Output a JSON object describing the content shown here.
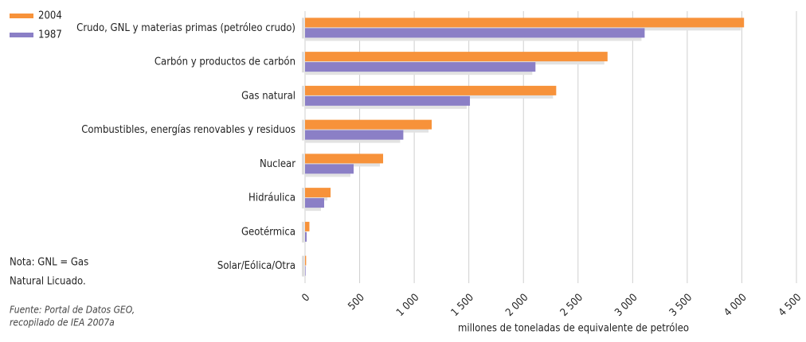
{
  "chart_data": {
    "type": "bar",
    "orientation": "horizontal",
    "categories": [
      "Crudo, GNL y materias primas (petróleo crudo)",
      "Carbón y productos de carbón",
      "Gas natural",
      "Combustibles, energías renovables y residuos",
      "Nuclear",
      "Hidráulica",
      "Geotérmica",
      "Solar/Eólica/Otra"
    ],
    "series": [
      {
        "name": "2004",
        "color": "#f7923a",
        "values": [
          4020,
          2770,
          2300,
          1160,
          715,
          234,
          40,
          10
        ]
      },
      {
        "name": "1987",
        "color": "#8b7fc6",
        "values": [
          3110,
          2110,
          1510,
          900,
          445,
          175,
          15,
          5
        ]
      }
    ],
    "xlim": [
      0,
      4500
    ],
    "xticks": [
      0,
      500,
      {
        "value": 1000,
        "label": "1 000"
      },
      {
        "value": 1500,
        "label": "1 500"
      },
      {
        "value": 2000,
        "label": "2 000"
      },
      {
        "value": 2500,
        "label": "2 500"
      },
      {
        "value": 3000,
        "label": "3 000"
      },
      {
        "value": 3500,
        "label": "3 500"
      },
      {
        "value": 4000,
        "label": "4 000"
      },
      {
        "value": 4500,
        "label": "4 500"
      }
    ],
    "xlabel": "millones de toneladas de equivalente de petróleo",
    "grid": true,
    "legend": "top-left",
    "note": [
      "Nota: GNL = Gas",
      "Natural Licuado."
    ],
    "source": [
      "Fuente: Portal de Datos GEO,",
      "recopilado de IEA 2007a"
    ]
  }
}
